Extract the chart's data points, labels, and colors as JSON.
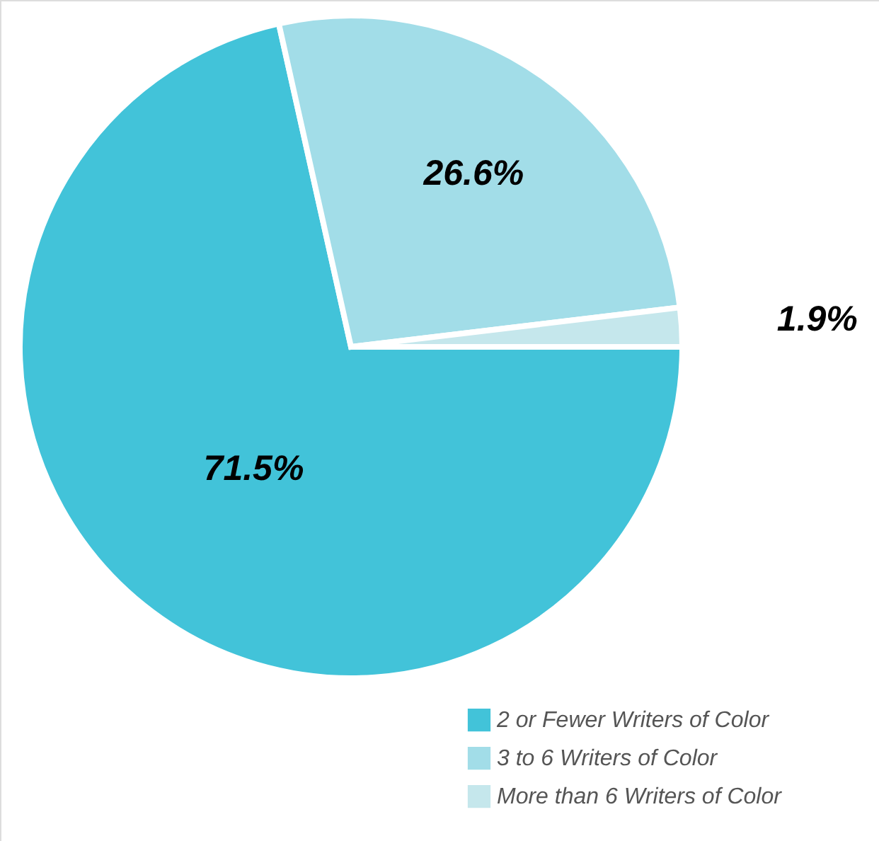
{
  "chart_data": {
    "type": "pie",
    "categories": [
      "2 or Fewer Writers of Color",
      "3 to 6 Writers of Color",
      "More than 6 Writers of Color"
    ],
    "values": [
      71.5,
      26.6,
      1.9
    ],
    "colors": [
      "#42c3d9",
      "#a2dde8",
      "#c5e7ec"
    ],
    "value_labels": [
      "71.5%",
      "26.6%",
      "1.9%"
    ],
    "legend": "bottom right"
  }
}
